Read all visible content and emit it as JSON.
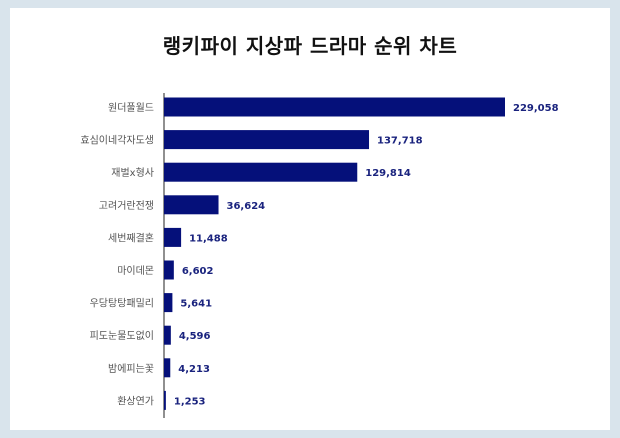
{
  "chart_data": {
    "type": "bar",
    "orientation": "horizontal",
    "title": "랭키파이 지상파 드라마 순위 차트",
    "categories": [
      "원더풀월드",
      "효심이네각자도생",
      "재벌x형사",
      "고려거란전쟁",
      "세번째결혼",
      "마이데몬",
      "우당탕탕패밀리",
      "피도눈물도없이",
      "밤에피는꽃",
      "환상연가"
    ],
    "values": [
      229058,
      137718,
      129814,
      36624,
      11488,
      6602,
      5641,
      4596,
      4213,
      1253
    ],
    "value_labels": [
      "229,058",
      "137,718",
      "129,814",
      "36,624",
      "11,488",
      "6,602",
      "5,641",
      "4,596",
      "4,213",
      "1,253"
    ],
    "xlim": [
      0,
      229058
    ],
    "grid": false,
    "legend": "none",
    "colors": {
      "bar": "#05107a",
      "value_label": "#1a237e",
      "category_label": "#555555",
      "axis": "#222222",
      "background": "#d9e4ec",
      "card": "#ffffff"
    }
  }
}
